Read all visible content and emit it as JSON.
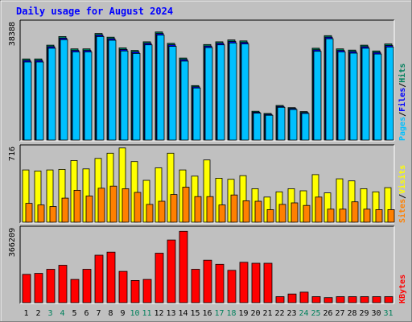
{
  "colors": {
    "background": "#c0c0c0",
    "plot_bg": "#c0c0c0",
    "title": "#0000ff",
    "hits": "#00805c",
    "files": "#0000ff",
    "pages": "#00c0ff",
    "visits": "#ffff00",
    "sites": "#ff8000",
    "kbytes": "#ff0000",
    "weekend": "#00805c",
    "weekday": "#000000"
  },
  "chart_data": {
    "type": "bar",
    "title": "Daily usage for August 2024",
    "days": [
      "1",
      "2",
      "3",
      "4",
      "5",
      "6",
      "7",
      "8",
      "9",
      "10",
      "11",
      "12",
      "13",
      "14",
      "15",
      "16",
      "17",
      "18",
      "19",
      "20",
      "21",
      "22",
      "23",
      "24",
      "25",
      "26",
      "27",
      "28",
      "29",
      "30",
      "31"
    ],
    "weekend_days": [
      "3",
      "4",
      "10",
      "11",
      "17",
      "18",
      "24",
      "25",
      "31"
    ],
    "panels": [
      {
        "id": "hits",
        "max_label": "38388",
        "max": 38388,
        "legend": [
          {
            "label": "Pages",
            "color": "#00c0ff"
          },
          {
            "label": "Files",
            "color": "#0000ff"
          },
          {
            "label": "Hits",
            "color": "#00805c"
          }
        ],
        "series": [
          {
            "name": "Hits",
            "values": [
              26500,
              26500,
              31000,
              33800,
              29800,
              29800,
              34800,
              33600,
              30100,
              29300,
              32100,
              35300,
              31600,
              26800,
              17800,
              31200,
              32100,
              32700,
              32400,
              9400,
              8700,
              11300,
              10600,
              9300,
              30000,
              34100,
              29800,
              29400,
              31000,
              29100,
              31400
            ]
          },
          {
            "name": "Files",
            "values": [
              26000,
              26000,
              30500,
              33300,
              29300,
              29300,
              34300,
              33100,
              29600,
              28800,
              31600,
              34800,
              31100,
              26300,
              17400,
              30700,
              31600,
              32200,
              31900,
              9100,
              8400,
              11000,
              10300,
              9000,
              29500,
              33600,
              29300,
              28900,
              30500,
              28600,
              30900
            ]
          },
          {
            "name": "Pages",
            "values": [
              25500,
              25500,
              30000,
              32800,
              28800,
              28800,
              33800,
              32600,
              29100,
              28300,
              31100,
              34300,
              30600,
              25800,
              17000,
              30200,
              31100,
              31700,
              31400,
              8800,
              8100,
              10700,
              10000,
              8700,
              29000,
              33100,
              28800,
              28400,
              30000,
              28100,
              30400
            ]
          }
        ]
      },
      {
        "id": "visits",
        "max_label": "716",
        "max": 716,
        "legend": [
          {
            "label": "Sites",
            "color": "#ff8000"
          },
          {
            "label": "Visits",
            "color": "#ffff00"
          }
        ],
        "series": [
          {
            "name": "Visits",
            "values": [
              500,
              490,
              500,
              505,
              590,
              510,
              610,
              660,
              710,
              580,
              400,
              520,
              660,
              500,
              440,
              595,
              420,
              410,
              445,
              320,
              240,
              290,
              320,
              300,
              455,
              280,
              415,
              395,
              320,
              290,
              330
            ]
          },
          {
            "name": "Sites",
            "values": [
              180,
              165,
              150,
              230,
              305,
              250,
              325,
              345,
              320,
              285,
              170,
              200,
              265,
              335,
              245,
              245,
              165,
              260,
              205,
              200,
              120,
              170,
              185,
              160,
              240,
              125,
              125,
              195,
              125,
              120,
              120
            ]
          }
        ]
      },
      {
        "id": "kbytes",
        "max_label": "366209",
        "max": 366209,
        "legend": [
          {
            "label": "KBytes",
            "color": "#ff0000"
          }
        ],
        "series": [
          {
            "name": "KBytes",
            "values": [
              140000,
              145000,
              165000,
              185000,
              115000,
              165000,
              235000,
              250000,
              155000,
              110000,
              115000,
              245000,
              310000,
              353000,
              165000,
              210000,
              190000,
              160000,
              200000,
              195000,
              195000,
              30000,
              43000,
              52000,
              30000,
              25000,
              30000,
              30000,
              30000,
              30000,
              30000
            ]
          }
        ]
      }
    ]
  }
}
